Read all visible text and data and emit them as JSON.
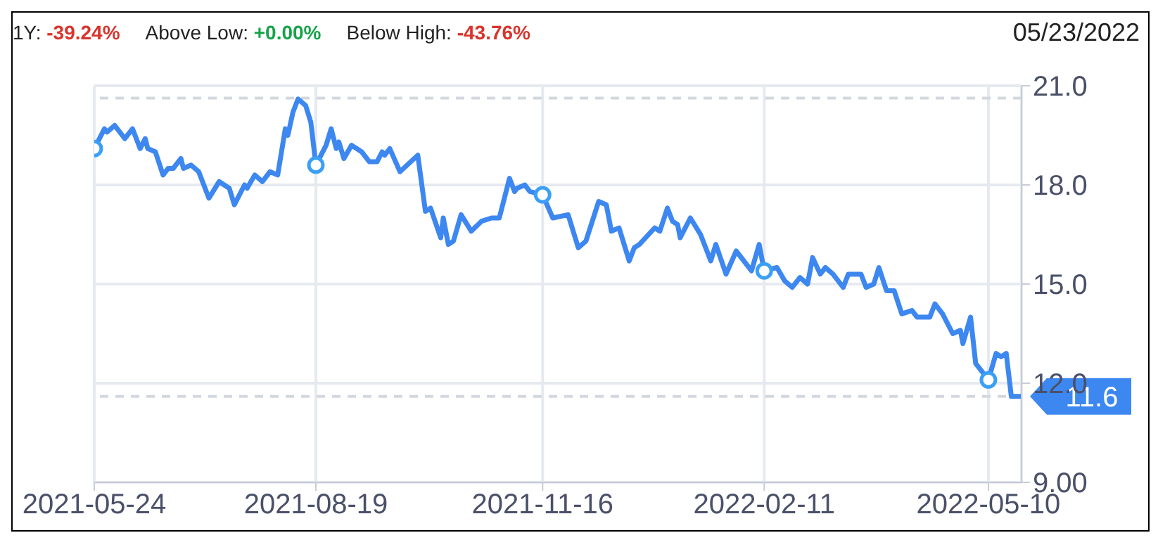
{
  "chart_data": {
    "type": "line",
    "subtitle": "05/23/2022",
    "annotations": [
      "1Y: -39.24%",
      "Above Low: +0.00%",
      "Below High: -43.76%"
    ],
    "xlim": [
      "2021-05-24",
      "2022-05-23"
    ],
    "xticks": [
      "2021-05-24",
      "2021-08-19",
      "2021-11-16",
      "2022-02-11",
      "2022-05-10"
    ],
    "ylim": [
      9,
      21
    ],
    "yticks": [
      {
        "value": 9,
        "label": "9.00"
      },
      {
        "value": 12,
        "label": "12.0"
      },
      {
        "value": 15,
        "label": "15.0"
      },
      {
        "value": 18,
        "label": "18.0"
      },
      {
        "value": 21,
        "label": "21.0"
      }
    ],
    "grid": true,
    "ref_lines": [
      {
        "axis": "y",
        "value": 20.63,
        "color": "#d3d7de",
        "line_style": "dashed"
      },
      {
        "axis": "y",
        "value": 11.6,
        "label": "11.6",
        "color": "#d3d7de",
        "line_style": "dashed"
      }
    ],
    "series": [
      {
        "type": "line",
        "color": "#3d87f0",
        "marker": "none",
        "line_style": "solid",
        "x": [
          "2021-05-24",
          "2021-05-28",
          "2021-05-29",
          "2021-06-01",
          "2021-06-05",
          "2021-06-08",
          "2021-06-11",
          "2021-06-13",
          "2021-06-14",
          "2021-06-17",
          "2021-06-20",
          "2021-06-22",
          "2021-06-24",
          "2021-06-27",
          "2021-06-28",
          "2021-07-01",
          "2021-07-04",
          "2021-07-08",
          "2021-07-12",
          "2021-07-14",
          "2021-07-16",
          "2021-07-18",
          "2021-07-22",
          "2021-07-23",
          "2021-07-26",
          "2021-07-29",
          "2021-08-01",
          "2021-08-04",
          "2021-08-07",
          "2021-08-08",
          "2021-08-10",
          "2021-08-12",
          "2021-08-15",
          "2021-08-17",
          "2021-08-19",
          "2021-08-23",
          "2021-08-25",
          "2021-08-27",
          "2021-08-28",
          "2021-08-30",
          "2021-09-02",
          "2021-09-06",
          "2021-09-09",
          "2021-09-12",
          "2021-09-14",
          "2021-09-15",
          "2021-09-17",
          "2021-09-21",
          "2021-09-28",
          "2021-10-01",
          "2021-10-03",
          "2021-10-07",
          "2021-10-08",
          "2021-10-10",
          "2021-10-12",
          "2021-10-15",
          "2021-10-19",
          "2021-10-23",
          "2021-10-27",
          "2021-10-30",
          "2021-11-03",
          "2021-11-05",
          "2021-11-06",
          "2021-11-09",
          "2021-11-11",
          "2021-11-16",
          "2021-11-20",
          "2021-11-26",
          "2021-11-30",
          "2021-12-03",
          "2021-12-08",
          "2021-12-11",
          "2021-12-13",
          "2021-12-16",
          "2021-12-20",
          "2021-12-22",
          "2021-12-24",
          "2021-12-30",
          "2022-01-01",
          "2022-01-04",
          "2022-01-06",
          "2022-01-08",
          "2022-01-09",
          "2022-01-13",
          "2022-01-17",
          "2022-01-21",
          "2022-01-23",
          "2022-01-27",
          "2022-01-31",
          "2022-02-06",
          "2022-02-09",
          "2022-02-11",
          "2022-02-16",
          "2022-02-19",
          "2022-02-22",
          "2022-02-25",
          "2022-02-28",
          "2022-03-02",
          "2022-03-05",
          "2022-03-07",
          "2022-03-10",
          "2022-03-14",
          "2022-03-16",
          "2022-03-21",
          "2022-03-23",
          "2022-03-26",
          "2022-03-28",
          "2022-03-31",
          "2022-04-03",
          "2022-04-06",
          "2022-04-10",
          "2022-04-12",
          "2022-04-17",
          "2022-04-19",
          "2022-04-22",
          "2022-04-26",
          "2022-04-29",
          "2022-04-30",
          "2022-05-03",
          "2022-05-05",
          "2022-05-07",
          "2022-05-10",
          "2022-05-13",
          "2022-05-15",
          "2022-05-17",
          "2022-05-19",
          "2022-05-23"
        ],
        "values": [
          19.1,
          19.7,
          19.6,
          19.8,
          19.4,
          19.7,
          19.1,
          19.4,
          19.1,
          19.0,
          18.3,
          18.5,
          18.5,
          18.8,
          18.5,
          18.6,
          18.4,
          17.6,
          18.1,
          18.0,
          17.9,
          17.4,
          18.0,
          17.9,
          18.3,
          18.1,
          18.4,
          18.3,
          19.7,
          19.5,
          20.2,
          20.6,
          20.4,
          19.9,
          18.6,
          19.2,
          19.7,
          19.1,
          19.3,
          18.8,
          19.2,
          19.0,
          18.7,
          18.7,
          19.0,
          18.9,
          19.1,
          18.4,
          18.9,
          17.2,
          17.3,
          16.4,
          17.0,
          16.2,
          16.3,
          17.1,
          16.6,
          16.9,
          17.0,
          17.0,
          18.2,
          17.8,
          17.9,
          18.0,
          17.8,
          17.7,
          17.0,
          17.1,
          16.1,
          16.3,
          17.5,
          17.4,
          16.6,
          16.7,
          15.7,
          16.1,
          16.2,
          16.7,
          16.6,
          17.3,
          16.9,
          16.8,
          16.4,
          17.0,
          16.5,
          15.7,
          16.2,
          15.3,
          16.0,
          15.4,
          16.2,
          15.4,
          15.5,
          15.1,
          14.9,
          15.2,
          15.0,
          15.8,
          15.3,
          15.5,
          15.3,
          14.9,
          15.3,
          15.3,
          14.9,
          15.0,
          15.5,
          14.8,
          14.8,
          14.1,
          14.2,
          14.0,
          14.0,
          14.4,
          14.1,
          13.5,
          13.6,
          13.2,
          14.0,
          12.6,
          12.4,
          12.1,
          12.9,
          12.8,
          12.9,
          11.6,
          11.6
        ]
      },
      {
        "type": "scatter",
        "color": "#3aa0f5",
        "marker": "circle",
        "x": [
          "2021-05-24",
          "2021-08-19",
          "2021-11-16",
          "2022-02-11",
          "2022-05-10"
        ],
        "values": [
          19.1,
          18.6,
          17.7,
          15.4,
          12.1
        ]
      }
    ]
  }
}
